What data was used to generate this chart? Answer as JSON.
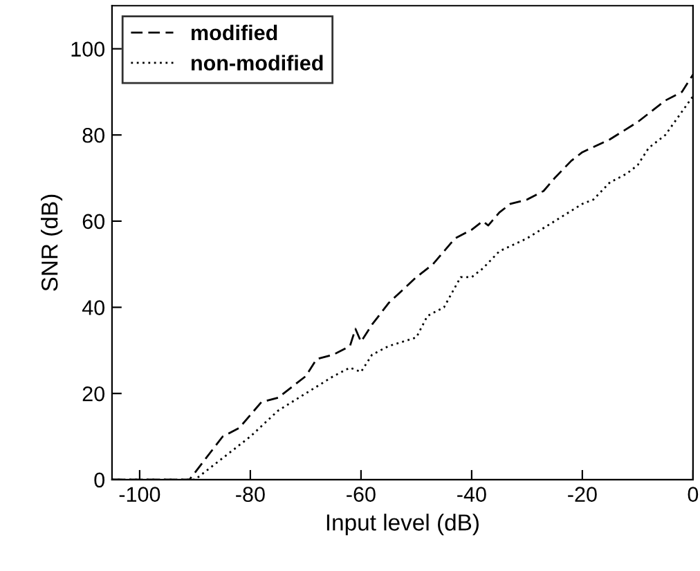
{
  "chart_data": {
    "type": "line",
    "xlabel": "Input level (dB)",
    "ylabel": "SNR (dB)",
    "xlim": [
      -105,
      0
    ],
    "ylim": [
      0,
      110
    ],
    "xticks": [
      -100,
      -80,
      -60,
      -40,
      -20,
      0
    ],
    "yticks": [
      0,
      20,
      40,
      60,
      80,
      100
    ],
    "grid": false,
    "legend": "top left",
    "series": [
      {
        "name": "modified",
        "color": "#000000",
        "line_style": "dashed",
        "x": [
          -105,
          -91,
          -88,
          -85,
          -82,
          -80,
          -78,
          -75,
          -72,
          -70,
          -68,
          -65,
          -62,
          -61,
          -60,
          -58,
          -55,
          -50,
          -47,
          -45,
          -43,
          -40,
          -38,
          -37,
          -35,
          -33,
          -30,
          -27,
          -25,
          -22,
          -20,
          -15,
          -10,
          -5,
          -2,
          0
        ],
        "values": [
          0,
          0,
          5,
          10,
          12,
          15,
          18,
          19,
          22,
          24,
          28,
          29,
          31,
          35,
          32,
          36,
          41,
          47,
          50,
          53,
          56,
          58,
          60,
          59,
          62,
          64,
          65,
          67,
          70,
          74,
          76,
          79,
          83,
          88,
          90,
          94
        ]
      },
      {
        "name": "non-modified",
        "color": "#000000",
        "line_style": "dotted",
        "x": [
          -105,
          -90,
          -85,
          -80,
          -75,
          -70,
          -65,
          -62,
          -60,
          -58,
          -55,
          -50,
          -48,
          -45,
          -42,
          -40,
          -38,
          -35,
          -30,
          -25,
          -20,
          -18,
          -15,
          -12,
          -10,
          -8,
          -5,
          0
        ],
        "values": [
          0,
          0,
          5,
          10,
          16,
          20,
          24,
          26,
          25,
          29,
          31,
          33,
          38,
          40,
          47,
          47,
          49,
          53,
          56,
          60,
          64,
          65,
          69,
          71,
          73,
          77,
          80,
          89
        ]
      }
    ]
  }
}
